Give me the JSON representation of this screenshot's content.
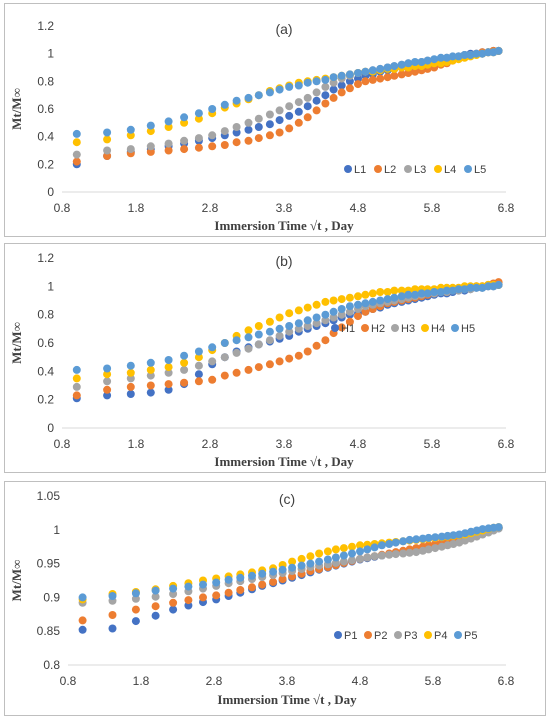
{
  "chart_data": [
    {
      "type": "scatter",
      "panel_label": "(a)",
      "xlabel": "Immersion Time √t , Day",
      "ylabel": "Mt/M∞",
      "xlim": [
        0.8,
        6.8
      ],
      "ylim": [
        0,
        1.2
      ],
      "xticks": [
        "0.8",
        "1.8",
        "2.8",
        "3.8",
        "4.8",
        "5.8",
        "6.8"
      ],
      "yticks": [
        "0",
        "0.2",
        "0.4",
        "0.6",
        "0.8",
        "1",
        "1.2"
      ],
      "grid": false,
      "legend_position": "bottom-right",
      "x": [
        1.0,
        1.41,
        1.73,
        2.0,
        2.24,
        2.45,
        2.65,
        2.83,
        3.0,
        3.16,
        3.32,
        3.46,
        3.61,
        3.74,
        3.87,
        4.0,
        4.12,
        4.24,
        4.36,
        4.47,
        4.58,
        4.69,
        4.8,
        4.9,
        5.0,
        5.1,
        5.2,
        5.29,
        5.39,
        5.48,
        5.57,
        5.66,
        5.74,
        5.83,
        5.92,
        6.0,
        6.08,
        6.16,
        6.24,
        6.32,
        6.4,
        6.48,
        6.56,
        6.63,
        6.7
      ],
      "series": [
        {
          "name": "L1",
          "color": "#4472C4",
          "values": [
            0.2,
            0.26,
            0.29,
            0.31,
            0.33,
            0.35,
            0.37,
            0.39,
            0.41,
            0.43,
            0.45,
            0.47,
            0.49,
            0.52,
            0.55,
            0.58,
            0.62,
            0.66,
            0.7,
            0.74,
            0.77,
            0.8,
            0.82,
            0.84,
            0.85,
            0.87,
            0.88,
            0.89,
            0.9,
            0.9,
            0.91,
            0.92,
            0.93,
            0.94,
            0.95,
            0.96,
            0.97,
            0.98,
            0.99,
            1.0,
            1.0,
            1.01,
            1.01,
            1.02,
            1.02
          ]
        },
        {
          "name": "L2",
          "color": "#ED7D31",
          "values": [
            0.22,
            0.26,
            0.28,
            0.29,
            0.3,
            0.31,
            0.32,
            0.33,
            0.34,
            0.36,
            0.37,
            0.39,
            0.41,
            0.43,
            0.46,
            0.5,
            0.54,
            0.59,
            0.64,
            0.68,
            0.72,
            0.75,
            0.78,
            0.8,
            0.81,
            0.82,
            0.83,
            0.84,
            0.85,
            0.86,
            0.87,
            0.88,
            0.89,
            0.9,
            0.92,
            0.93,
            0.95,
            0.97,
            0.98,
            0.99,
            1.0,
            1.01,
            1.01,
            1.02,
            1.02
          ]
        },
        {
          "name": "L3",
          "color": "#A5A5A5",
          "values": [
            0.27,
            0.3,
            0.31,
            0.33,
            0.35,
            0.37,
            0.39,
            0.41,
            0.44,
            0.47,
            0.5,
            0.53,
            0.56,
            0.59,
            0.62,
            0.65,
            0.68,
            0.72,
            0.76,
            0.79,
            0.82,
            0.84,
            0.86,
            0.87,
            0.88,
            0.89,
            0.9,
            0.91,
            0.92,
            0.93,
            0.93,
            0.94,
            0.95,
            0.95,
            0.96,
            0.97,
            0.97,
            0.98,
            0.99,
            0.99,
            1.0,
            1.0,
            1.01,
            1.01,
            1.02
          ]
        },
        {
          "name": "L4",
          "color": "#FFC000",
          "values": [
            0.36,
            0.38,
            0.41,
            0.44,
            0.47,
            0.5,
            0.53,
            0.57,
            0.61,
            0.64,
            0.67,
            0.7,
            0.73,
            0.75,
            0.77,
            0.79,
            0.8,
            0.81,
            0.82,
            0.83,
            0.84,
            0.85,
            0.86,
            0.87,
            0.87,
            0.88,
            0.89,
            0.89,
            0.9,
            0.9,
            0.91,
            0.91,
            0.92,
            0.93,
            0.93,
            0.94,
            0.95,
            0.96,
            0.97,
            0.98,
            0.99,
            1.0,
            1.01,
            1.01,
            1.02
          ]
        },
        {
          "name": "L5",
          "color": "#5B9BD5",
          "values": [
            0.42,
            0.43,
            0.45,
            0.48,
            0.51,
            0.54,
            0.57,
            0.6,
            0.63,
            0.66,
            0.68,
            0.7,
            0.72,
            0.74,
            0.76,
            0.77,
            0.79,
            0.8,
            0.81,
            0.83,
            0.84,
            0.85,
            0.86,
            0.87,
            0.88,
            0.89,
            0.9,
            0.91,
            0.92,
            0.93,
            0.94,
            0.94,
            0.95,
            0.96,
            0.97,
            0.97,
            0.98,
            0.98,
            0.99,
            0.99,
            1.0,
            1.0,
            1.01,
            1.01,
            1.02
          ]
        }
      ]
    },
    {
      "type": "scatter",
      "panel_label": "(b)",
      "xlabel": "Immersion Time √t , Day",
      "ylabel": "Mt/M∞",
      "xlim": [
        0.8,
        6.8
      ],
      "ylim": [
        0,
        1.2
      ],
      "xticks": [
        "0.8",
        "1.8",
        "2.8",
        "3.8",
        "4.8",
        "5.8",
        "6.8"
      ],
      "yticks": [
        "0",
        "0.2",
        "0.4",
        "0.6",
        "0.8",
        "1",
        "1.2"
      ],
      "grid": false,
      "legend_position": "bottom-right",
      "x": [
        1.0,
        1.41,
        1.73,
        2.0,
        2.24,
        2.45,
        2.65,
        2.83,
        3.0,
        3.16,
        3.32,
        3.46,
        3.61,
        3.74,
        3.87,
        4.0,
        4.12,
        4.24,
        4.36,
        4.47,
        4.58,
        4.69,
        4.8,
        4.9,
        5.0,
        5.1,
        5.2,
        5.29,
        5.39,
        5.48,
        5.57,
        5.66,
        5.74,
        5.83,
        5.92,
        6.0,
        6.08,
        6.16,
        6.24,
        6.32,
        6.4,
        6.48,
        6.56,
        6.63,
        6.7
      ],
      "series": [
        {
          "name": "H1",
          "color": "#4472C4",
          "values": [
            0.21,
            0.23,
            0.24,
            0.25,
            0.27,
            0.31,
            0.38,
            0.45,
            0.5,
            0.54,
            0.57,
            0.59,
            0.61,
            0.63,
            0.65,
            0.68,
            0.7,
            0.72,
            0.74,
            0.76,
            0.78,
            0.8,
            0.81,
            0.82,
            0.84,
            0.85,
            0.87,
            0.88,
            0.89,
            0.9,
            0.91,
            0.92,
            0.93,
            0.94,
            0.95,
            0.95,
            0.96,
            0.97,
            0.97,
            0.98,
            0.99,
            0.99,
            1.0,
            1.0,
            1.01
          ]
        },
        {
          "name": "H2",
          "color": "#ED7D31",
          "values": [
            0.23,
            0.27,
            0.29,
            0.3,
            0.31,
            0.32,
            0.33,
            0.34,
            0.37,
            0.39,
            0.41,
            0.43,
            0.45,
            0.47,
            0.49,
            0.51,
            0.54,
            0.58,
            0.62,
            0.67,
            0.71,
            0.75,
            0.79,
            0.82,
            0.84,
            0.86,
            0.88,
            0.89,
            0.9,
            0.91,
            0.92,
            0.93,
            0.94,
            0.95,
            0.96,
            0.96,
            0.97,
            0.98,
            0.99,
            0.99,
            1.0,
            1.0,
            1.01,
            1.02,
            1.03
          ]
        },
        {
          "name": "H3",
          "color": "#A5A5A5",
          "values": [
            0.29,
            0.33,
            0.35,
            0.37,
            0.39,
            0.41,
            0.44,
            0.47,
            0.5,
            0.53,
            0.56,
            0.59,
            0.62,
            0.65,
            0.68,
            0.7,
            0.72,
            0.74,
            0.76,
            0.78,
            0.8,
            0.82,
            0.84,
            0.86,
            0.87,
            0.88,
            0.89,
            0.9,
            0.91,
            0.92,
            0.93,
            0.94,
            0.95,
            0.95,
            0.96,
            0.96,
            0.97,
            0.97,
            0.98,
            0.98,
            0.99,
            0.99,
            1.0,
            1.0,
            1.01
          ]
        },
        {
          "name": "H4",
          "color": "#FFC000",
          "values": [
            0.35,
            0.38,
            0.39,
            0.41,
            0.43,
            0.46,
            0.5,
            0.55,
            0.6,
            0.65,
            0.69,
            0.72,
            0.75,
            0.78,
            0.81,
            0.83,
            0.85,
            0.87,
            0.89,
            0.9,
            0.91,
            0.92,
            0.93,
            0.94,
            0.95,
            0.96,
            0.96,
            0.97,
            0.97,
            0.97,
            0.98,
            0.98,
            0.98,
            0.98,
            0.99,
            0.99,
            0.99,
            0.99,
            1.0,
            1.0,
            1.0,
            1.0,
            1.01,
            1.01,
            1.01
          ]
        },
        {
          "name": "H5",
          "color": "#5B9BD5",
          "values": [
            0.41,
            0.42,
            0.44,
            0.46,
            0.48,
            0.51,
            0.54,
            0.57,
            0.6,
            0.62,
            0.64,
            0.66,
            0.68,
            0.7,
            0.72,
            0.74,
            0.76,
            0.78,
            0.8,
            0.82,
            0.84,
            0.86,
            0.87,
            0.88,
            0.89,
            0.9,
            0.91,
            0.92,
            0.93,
            0.94,
            0.94,
            0.95,
            0.95,
            0.96,
            0.96,
            0.97,
            0.97,
            0.98,
            0.98,
            0.99,
            0.99,
            0.99,
            1.0,
            1.0,
            1.01
          ]
        }
      ]
    },
    {
      "type": "scatter",
      "panel_label": "(c)",
      "xlabel": "Immersion Time √t , Day",
      "ylabel": "Mt/M∞",
      "xlim": [
        0.8,
        6.8
      ],
      "ylim": [
        0.8,
        1.05
      ],
      "xticks": [
        "0.8",
        "1.8",
        "2.8",
        "3.8",
        "4.8",
        "5.8",
        "6.8"
      ],
      "yticks": [
        "0.8",
        "0.85",
        "0.9",
        "0.95",
        "1",
        "1.05"
      ],
      "grid": false,
      "legend_position": "bottom-right",
      "x": [
        1.0,
        1.41,
        1.73,
        2.0,
        2.24,
        2.45,
        2.65,
        2.83,
        3.0,
        3.16,
        3.32,
        3.46,
        3.61,
        3.74,
        3.87,
        4.0,
        4.12,
        4.24,
        4.36,
        4.47,
        4.58,
        4.69,
        4.8,
        4.9,
        5.0,
        5.1,
        5.2,
        5.29,
        5.39,
        5.48,
        5.57,
        5.66,
        5.74,
        5.83,
        5.92,
        6.0,
        6.08,
        6.16,
        6.24,
        6.32,
        6.4,
        6.48,
        6.56,
        6.63,
        6.7
      ],
      "series": [
        {
          "name": "P1",
          "color": "#4472C4",
          "values": [
            0.852,
            0.854,
            0.865,
            0.873,
            0.882,
            0.888,
            0.893,
            0.897,
            0.902,
            0.907,
            0.912,
            0.917,
            0.921,
            0.925,
            0.929,
            0.933,
            0.937,
            0.941,
            0.944,
            0.947,
            0.95,
            0.953,
            0.956,
            0.958,
            0.96,
            0.962,
            0.964,
            0.966,
            0.968,
            0.97,
            0.972,
            0.974,
            0.976,
            0.978,
            0.98,
            0.982,
            0.984,
            0.986,
            0.988,
            0.99,
            0.993,
            0.996,
            0.999,
            1.001,
            1.002
          ]
        },
        {
          "name": "P2",
          "color": "#ED7D31",
          "values": [
            0.866,
            0.874,
            0.882,
            0.887,
            0.892,
            0.896,
            0.9,
            0.903,
            0.907,
            0.911,
            0.915,
            0.919,
            0.923,
            0.927,
            0.931,
            0.935,
            0.939,
            0.942,
            0.945,
            0.948,
            0.951,
            0.954,
            0.957,
            0.959,
            0.961,
            0.963,
            0.965,
            0.967,
            0.969,
            0.971,
            0.973,
            0.975,
            0.977,
            0.979,
            0.981,
            0.983,
            0.985,
            0.987,
            0.989,
            0.991,
            0.994,
            0.997,
            1.0,
            1.002,
            1.003
          ]
        },
        {
          "name": "P3",
          "color": "#A5A5A5",
          "values": [
            0.892,
            0.895,
            0.898,
            0.901,
            0.905,
            0.909,
            0.913,
            0.917,
            0.921,
            0.924,
            0.927,
            0.93,
            0.933,
            0.936,
            0.939,
            0.942,
            0.945,
            0.947,
            0.949,
            0.951,
            0.953,
            0.955,
            0.957,
            0.959,
            0.961,
            0.962,
            0.963,
            0.964,
            0.965,
            0.966,
            0.967,
            0.969,
            0.971,
            0.973,
            0.975,
            0.977,
            0.979,
            0.981,
            0.984,
            0.987,
            0.99,
            0.993,
            0.996,
            0.999,
            1.002
          ]
        },
        {
          "name": "P4",
          "color": "#FFC000",
          "values": [
            0.897,
            0.905,
            0.908,
            0.912,
            0.917,
            0.921,
            0.925,
            0.928,
            0.931,
            0.934,
            0.937,
            0.94,
            0.943,
            0.948,
            0.953,
            0.957,
            0.961,
            0.965,
            0.968,
            0.971,
            0.973,
            0.975,
            0.977,
            0.978,
            0.979,
            0.98,
            0.981,
            0.982,
            0.983,
            0.984,
            0.985,
            0.986,
            0.987,
            0.988,
            0.989,
            0.99,
            0.991,
            0.992,
            0.993,
            0.995,
            0.997,
            0.999,
            1.001,
            1.003,
            1.004
          ]
        },
        {
          "name": "P5",
          "color": "#5B9BD5",
          "values": [
            0.9,
            0.902,
            0.906,
            0.91,
            0.913,
            0.916,
            0.919,
            0.922,
            0.926,
            0.929,
            0.932,
            0.935,
            0.938,
            0.941,
            0.944,
            0.947,
            0.95,
            0.953,
            0.956,
            0.959,
            0.962,
            0.965,
            0.968,
            0.971,
            0.974,
            0.977,
            0.979,
            0.981,
            0.983,
            0.985,
            0.986,
            0.987,
            0.988,
            0.989,
            0.99,
            0.991,
            0.992,
            0.993,
            0.995,
            0.997,
            0.999,
            1.001,
            1.002,
            1.003,
            1.004
          ]
        }
      ]
    }
  ]
}
